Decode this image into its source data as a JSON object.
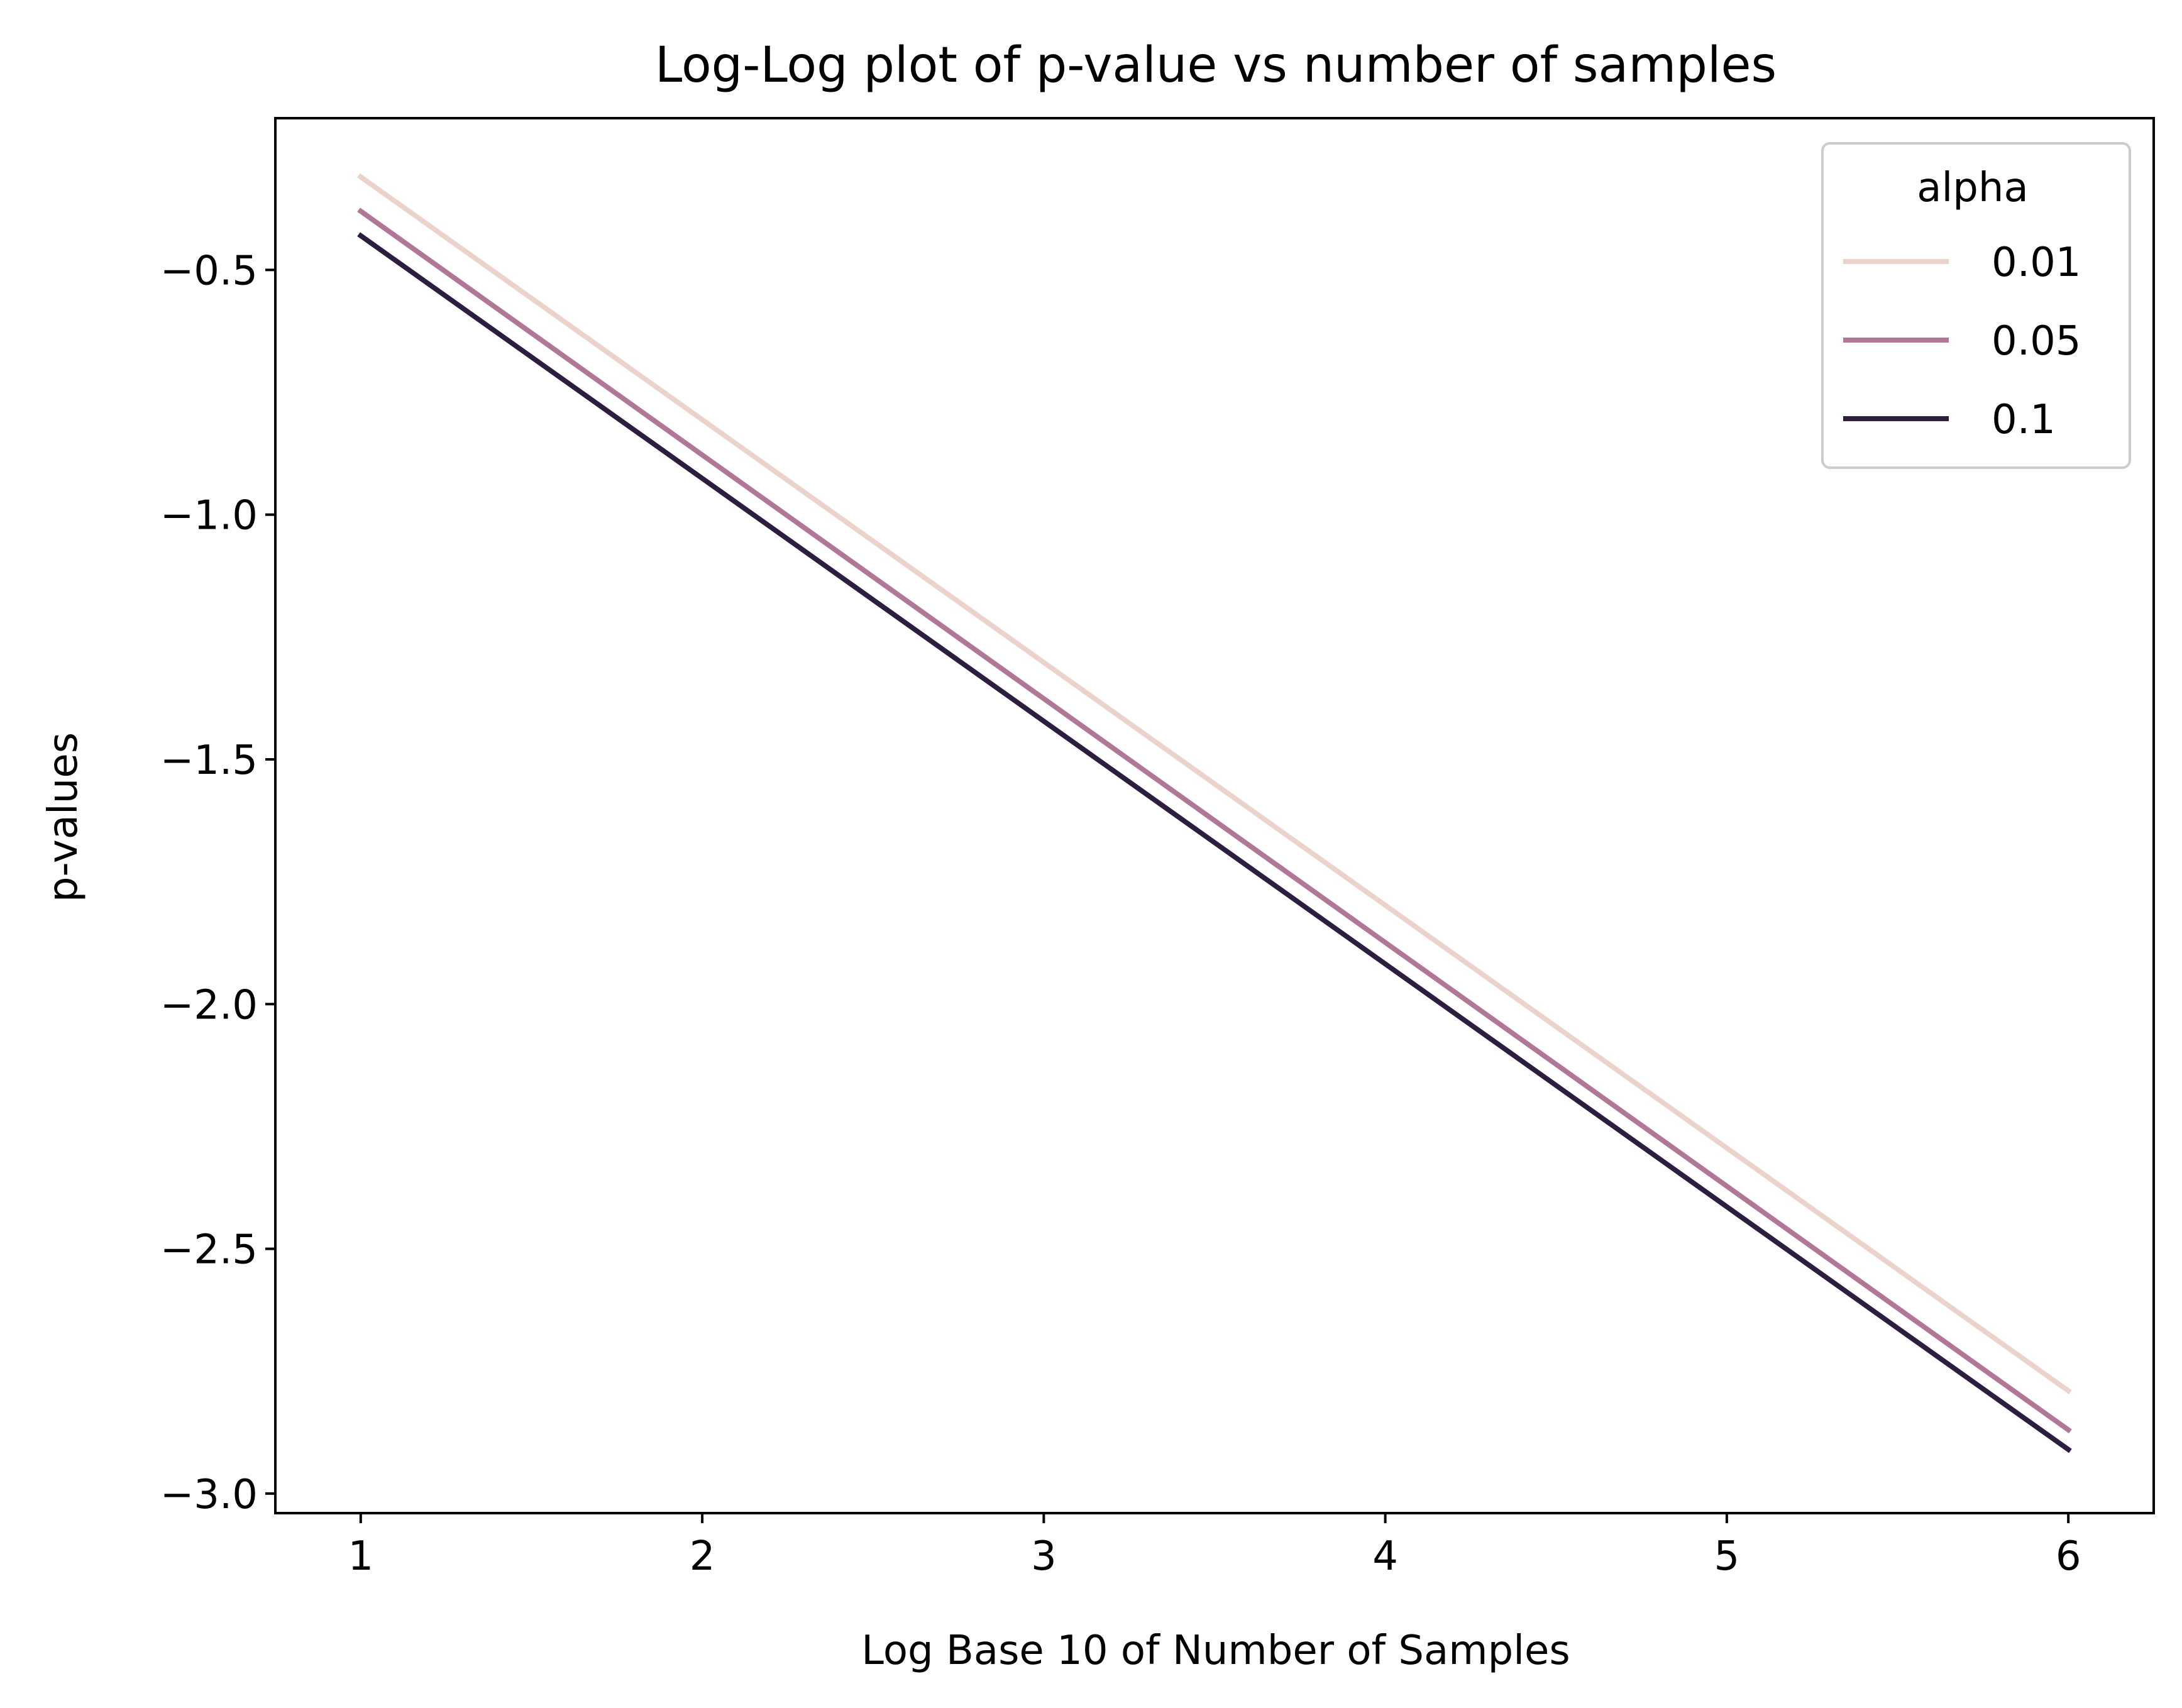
{
  "chart_data": {
    "type": "line",
    "title": "Log-Log plot of p-value vs number of samples",
    "xlabel": "Log Base 10 of Number of Samples",
    "ylabel": "p-values",
    "x": [
      1,
      2,
      3,
      4,
      5,
      6
    ],
    "xlim": [
      0.75,
      6.25
    ],
    "ylim": [
      -3.04,
      -0.19
    ],
    "xticks": [
      1,
      2,
      3,
      4,
      5,
      6
    ],
    "xtick_labels": [
      "1",
      "2",
      "3",
      "4",
      "5",
      "6"
    ],
    "yticks": [
      -0.5,
      -1.0,
      -1.5,
      -2.0,
      -2.5,
      -3.0
    ],
    "ytick_labels": [
      "−0.5",
      "−1.0",
      "−1.5",
      "−2.0",
      "−2.5",
      "−3.0"
    ],
    "grid": false,
    "legend": {
      "title": "alpha",
      "position": "top-right"
    },
    "series": [
      {
        "name": "0.01",
        "color": "#ebd3cb",
        "values": [
          -0.31,
          -0.806,
          -1.302,
          -1.798,
          -2.294,
          -2.79
        ]
      },
      {
        "name": "0.05",
        "color": "#b07896",
        "values": [
          -0.38,
          -0.878,
          -1.376,
          -1.874,
          -2.372,
          -2.87
        ]
      },
      {
        "name": "0.1",
        "color": "#2d1e3f",
        "values": [
          -0.43,
          -0.926,
          -1.422,
          -1.918,
          -2.414,
          -2.91
        ]
      }
    ]
  }
}
